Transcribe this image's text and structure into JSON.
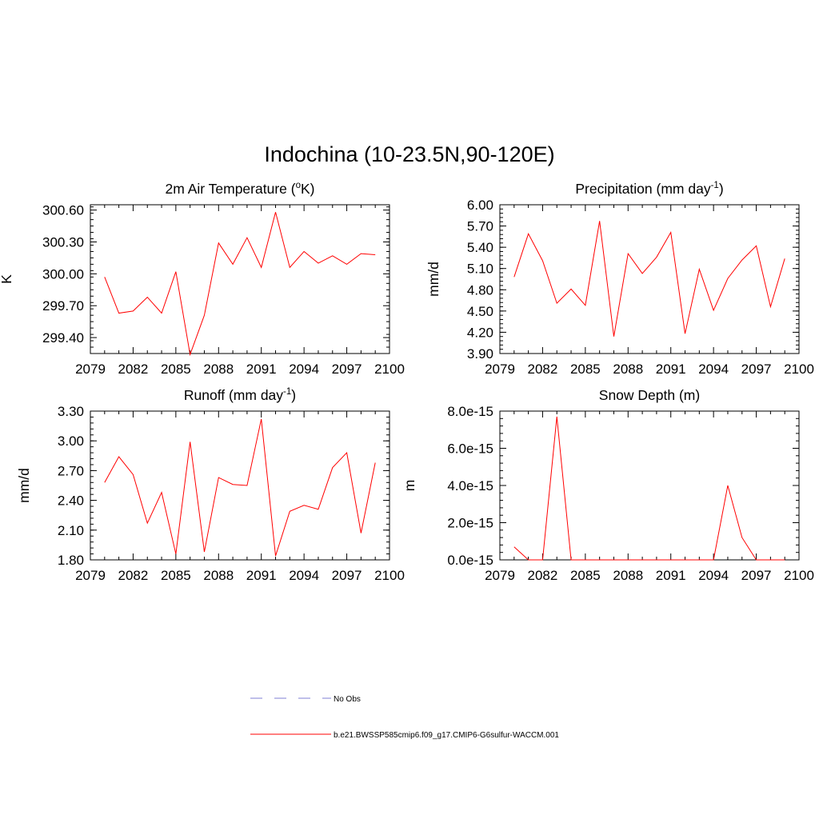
{
  "title": "Indochina (10-23.5N,90-120E)",
  "colors": {
    "series": "#ff0000",
    "obs": "#9999dd",
    "axis": "#000000"
  },
  "chart_data": [
    {
      "type": "line",
      "title": "2m Air Temperature (",
      "title_sup": "o",
      "title_suffix": "K)",
      "ylabel": "K",
      "xlim": [
        2079,
        2100
      ],
      "ylim": [
        299.25,
        300.65
      ],
      "yticks": [
        299.4,
        299.7,
        300.0,
        300.3,
        300.6
      ],
      "ytick_labels": [
        "299.40",
        "299.70",
        "300.00",
        "300.30",
        "300.60"
      ],
      "xticks": [
        2079,
        2082,
        2085,
        2088,
        2091,
        2094,
        2097,
        2100
      ],
      "xtick_labels": [
        "2079",
        "2082",
        "2085",
        "2088",
        "2091",
        "2094",
        "2097",
        "2100"
      ],
      "x": [
        2080,
        2081,
        2082,
        2083,
        2084,
        2085,
        2086,
        2087,
        2088,
        2089,
        2090,
        2091,
        2092,
        2093,
        2094,
        2095,
        2096,
        2097,
        2098,
        2099
      ],
      "series": [
        {
          "name": "b.e21.BWSSP585cmip6.f09_g17.CMIP6-G6sulfur-WACCM.001",
          "values": [
            299.97,
            299.63,
            299.65,
            299.78,
            299.63,
            300.02,
            299.24,
            299.61,
            300.29,
            300.09,
            300.34,
            300.06,
            300.58,
            300.06,
            300.21,
            300.1,
            300.17,
            300.09,
            300.19,
            300.18
          ]
        }
      ]
    },
    {
      "type": "line",
      "title": "Precipitation (mm day",
      "title_sup": "-1",
      "title_suffix": ")",
      "ylabel": "mm/d",
      "xlim": [
        2079,
        2100
      ],
      "ylim": [
        3.9,
        6.0
      ],
      "yticks": [
        3.9,
        4.2,
        4.5,
        4.8,
        5.1,
        5.4,
        5.7,
        6.0
      ],
      "ytick_labels": [
        "3.90",
        "4.20",
        "4.50",
        "4.80",
        "5.10",
        "5.40",
        "5.70",
        "6.00"
      ],
      "xticks": [
        2079,
        2082,
        2085,
        2088,
        2091,
        2094,
        2097,
        2100
      ],
      "xtick_labels": [
        "2079",
        "2082",
        "2085",
        "2088",
        "2091",
        "2094",
        "2097",
        "2100"
      ],
      "x": [
        2080,
        2081,
        2082,
        2083,
        2084,
        2085,
        2086,
        2087,
        2088,
        2089,
        2090,
        2091,
        2092,
        2093,
        2094,
        2095,
        2096,
        2097,
        2098,
        2099
      ],
      "series": [
        {
          "name": "b.e21.BWSSP585cmip6.f09_g17.CMIP6-G6sulfur-WACCM.001",
          "values": [
            4.98,
            5.59,
            5.21,
            4.61,
            4.81,
            4.58,
            5.77,
            4.14,
            5.31,
            5.03,
            5.26,
            5.61,
            4.18,
            5.09,
            4.51,
            4.96,
            5.22,
            5.42,
            4.56,
            5.24
          ]
        }
      ]
    },
    {
      "type": "line",
      "title": "Runoff (mm day",
      "title_sup": "-1",
      "title_suffix": ")",
      "ylabel": "mm/d",
      "xlim": [
        2079,
        2100
      ],
      "ylim": [
        1.8,
        3.3
      ],
      "yticks": [
        1.8,
        2.1,
        2.4,
        2.7,
        3.0,
        3.3
      ],
      "ytick_labels": [
        "1.80",
        "2.10",
        "2.40",
        "2.70",
        "3.00",
        "3.30"
      ],
      "xticks": [
        2079,
        2082,
        2085,
        2088,
        2091,
        2094,
        2097,
        2100
      ],
      "xtick_labels": [
        "2079",
        "2082",
        "2085",
        "2088",
        "2091",
        "2094",
        "2097",
        "2100"
      ],
      "x": [
        2080,
        2081,
        2082,
        2083,
        2084,
        2085,
        2086,
        2087,
        2088,
        2089,
        2090,
        2091,
        2092,
        2093,
        2094,
        2095,
        2096,
        2097,
        2098,
        2099
      ],
      "series": [
        {
          "name": "b.e21.BWSSP585cmip6.f09_g17.CMIP6-G6sulfur-WACCM.001",
          "values": [
            2.58,
            2.84,
            2.66,
            2.17,
            2.48,
            1.86,
            2.99,
            1.88,
            2.63,
            2.56,
            2.55,
            3.22,
            1.84,
            2.29,
            2.35,
            2.31,
            2.73,
            2.88,
            2.07,
            2.78
          ]
        }
      ]
    },
    {
      "type": "line",
      "title": "Snow Depth (m)",
      "title_sup": "",
      "title_suffix": "",
      "ylabel": "m",
      "xlim": [
        2079,
        2100
      ],
      "ylim": [
        0,
        8e-15
      ],
      "yticks": [
        0,
        2e-15,
        4e-15,
        6e-15,
        8e-15
      ],
      "ytick_labels": [
        "0.0e-15",
        "2.0e-15",
        "4.0e-15",
        "6.0e-15",
        "8.0e-15"
      ],
      "xticks": [
        2079,
        2082,
        2085,
        2088,
        2091,
        2094,
        2097,
        2100
      ],
      "xtick_labels": [
        "2079",
        "2082",
        "2085",
        "2088",
        "2091",
        "2094",
        "2097",
        "2100"
      ],
      "x": [
        2080,
        2081,
        2082,
        2083,
        2084,
        2085,
        2086,
        2087,
        2088,
        2089,
        2090,
        2091,
        2092,
        2093,
        2094,
        2095,
        2096,
        2097,
        2098,
        2099
      ],
      "series": [
        {
          "name": "b.e21.BWSSP585cmip6.f09_g17.CMIP6-G6sulfur-WACCM.001",
          "values": [
            7e-16,
            0,
            0,
            7.7e-15,
            0,
            0,
            0,
            0,
            0,
            0,
            0,
            0,
            0,
            0,
            0,
            4e-15,
            1.2e-15,
            0,
            0,
            0
          ]
        }
      ]
    }
  ],
  "legend": {
    "entries": [
      {
        "label": "No Obs",
        "style": "dashed"
      },
      {
        "label": "b.e21.BWSSP585cmip6.f09_g17.CMIP6-G6sulfur-WACCM.001",
        "style": "solid"
      }
    ]
  }
}
